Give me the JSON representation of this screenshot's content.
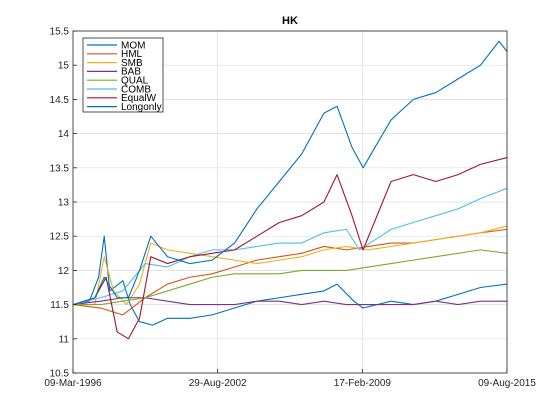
{
  "chart_data": {
    "type": "line",
    "title": "HK",
    "xlabel": "",
    "ylabel": "",
    "x_ticks": [
      "09-Mar-1996",
      "29-Aug-2002",
      "17-Feb-2009",
      "09-Aug-2015"
    ],
    "x_range": [
      "1996-03-09",
      "2015-08-09"
    ],
    "ylim": [
      10.5,
      15.5
    ],
    "y_ticks": [
      10.5,
      11,
      11.5,
      12,
      12.5,
      13,
      13.5,
      14,
      14.5,
      15,
      15.5
    ],
    "grid": true,
    "legend_position": "top-left",
    "series": [
      {
        "name": "MOM",
        "color": "#0072bd",
        "points": [
          [
            "1996-03-09",
            11.5
          ],
          [
            "1996-12-01",
            11.55
          ],
          [
            "1997-05-01",
            11.9
          ],
          [
            "1997-08-01",
            12.5
          ],
          [
            "1997-11-01",
            11.7
          ],
          [
            "1998-06-01",
            11.85
          ],
          [
            "1998-10-01",
            11.5
          ],
          [
            "1999-03-01",
            11.25
          ],
          [
            "1999-10-01",
            11.2
          ],
          [
            "2000-06-01",
            11.3
          ],
          [
            "2001-06-01",
            11.3
          ],
          [
            "2002-06-01",
            11.35
          ],
          [
            "2003-06-01",
            11.45
          ],
          [
            "2004-06-01",
            11.55
          ],
          [
            "2005-06-01",
            11.6
          ],
          [
            "2006-06-01",
            11.65
          ],
          [
            "2007-06-01",
            11.7
          ],
          [
            "2008-01-01",
            11.8
          ],
          [
            "2008-10-01",
            11.55
          ],
          [
            "2009-03-01",
            11.45
          ],
          [
            "2010-06-01",
            11.55
          ],
          [
            "2011-06-01",
            11.5
          ],
          [
            "2012-06-01",
            11.55
          ],
          [
            "2013-06-01",
            11.65
          ],
          [
            "2014-06-01",
            11.75
          ],
          [
            "2015-08-09",
            11.8
          ]
        ]
      },
      {
        "name": "HML",
        "color": "#d95319",
        "points": [
          [
            "1996-03-09",
            11.5
          ],
          [
            "1997-06-01",
            11.45
          ],
          [
            "1998-06-01",
            11.35
          ],
          [
            "1999-06-01",
            11.6
          ],
          [
            "2000-06-01",
            11.8
          ],
          [
            "2001-06-01",
            11.9
          ],
          [
            "2002-06-01",
            11.95
          ],
          [
            "2003-06-01",
            12.05
          ],
          [
            "2004-06-01",
            12.15
          ],
          [
            "2005-06-01",
            12.2
          ],
          [
            "2006-06-01",
            12.25
          ],
          [
            "2007-06-01",
            12.35
          ],
          [
            "2008-06-01",
            12.3
          ],
          [
            "2009-06-01",
            12.35
          ],
          [
            "2010-06-01",
            12.4
          ],
          [
            "2011-06-01",
            12.4
          ],
          [
            "2012-06-01",
            12.45
          ],
          [
            "2013-06-01",
            12.5
          ],
          [
            "2014-06-01",
            12.55
          ],
          [
            "2015-08-09",
            12.6
          ]
        ]
      },
      {
        "name": "SMB",
        "color": "#edb120",
        "points": [
          [
            "1996-03-09",
            11.5
          ],
          [
            "1997-03-01",
            11.5
          ],
          [
            "1997-08-01",
            12.2
          ],
          [
            "1998-01-01",
            11.7
          ],
          [
            "1998-08-01",
            11.5
          ],
          [
            "1999-03-01",
            11.8
          ],
          [
            "1999-09-01",
            12.4
          ],
          [
            "2000-06-01",
            12.3
          ],
          [
            "2001-06-01",
            12.25
          ],
          [
            "2002-06-01",
            12.2
          ],
          [
            "2003-06-01",
            12.15
          ],
          [
            "2004-06-01",
            12.1
          ],
          [
            "2005-06-01",
            12.15
          ],
          [
            "2006-06-01",
            12.2
          ],
          [
            "2007-06-01",
            12.3
          ],
          [
            "2008-06-01",
            12.35
          ],
          [
            "2009-06-01",
            12.3
          ],
          [
            "2010-06-01",
            12.35
          ],
          [
            "2011-06-01",
            12.4
          ],
          [
            "2012-06-01",
            12.45
          ],
          [
            "2013-06-01",
            12.5
          ],
          [
            "2014-06-01",
            12.55
          ],
          [
            "2015-08-09",
            12.65
          ]
        ]
      },
      {
        "name": "BAB",
        "color": "#7e2f8e",
        "points": [
          [
            "1996-03-09",
            11.5
          ],
          [
            "1997-06-01",
            11.55
          ],
          [
            "1998-06-01",
            11.6
          ],
          [
            "1999-06-01",
            11.6
          ],
          [
            "2000-06-01",
            11.55
          ],
          [
            "2001-06-01",
            11.5
          ],
          [
            "2002-06-01",
            11.5
          ],
          [
            "2003-06-01",
            11.5
          ],
          [
            "2004-06-01",
            11.55
          ],
          [
            "2005-06-01",
            11.55
          ],
          [
            "2006-06-01",
            11.5
          ],
          [
            "2007-06-01",
            11.55
          ],
          [
            "2008-06-01",
            11.5
          ],
          [
            "2009-06-01",
            11.5
          ],
          [
            "2010-06-01",
            11.5
          ],
          [
            "2011-06-01",
            11.5
          ],
          [
            "2012-06-01",
            11.55
          ],
          [
            "2013-06-01",
            11.5
          ],
          [
            "2014-06-01",
            11.55
          ],
          [
            "2015-08-09",
            11.55
          ]
        ]
      },
      {
        "name": "QUAL",
        "color": "#77ac30",
        "points": [
          [
            "1996-03-09",
            11.5
          ],
          [
            "1997-06-01",
            11.5
          ],
          [
            "1998-06-01",
            11.55
          ],
          [
            "1999-06-01",
            11.6
          ],
          [
            "2000-06-01",
            11.7
          ],
          [
            "2001-06-01",
            11.8
          ],
          [
            "2002-06-01",
            11.9
          ],
          [
            "2003-06-01",
            11.95
          ],
          [
            "2004-06-01",
            11.95
          ],
          [
            "2005-06-01",
            11.95
          ],
          [
            "2006-06-01",
            12.0
          ],
          [
            "2007-06-01",
            12.0
          ],
          [
            "2008-06-01",
            12.0
          ],
          [
            "2009-06-01",
            12.05
          ],
          [
            "2010-06-01",
            12.1
          ],
          [
            "2011-06-01",
            12.15
          ],
          [
            "2012-06-01",
            12.2
          ],
          [
            "2013-06-01",
            12.25
          ],
          [
            "2014-06-01",
            12.3
          ],
          [
            "2015-08-09",
            12.25
          ]
        ]
      },
      {
        "name": "COMB",
        "color": "#4dbeee",
        "points": [
          [
            "1996-03-09",
            11.5
          ],
          [
            "1997-06-01",
            11.6
          ],
          [
            "1998-06-01",
            11.7
          ],
          [
            "1999-06-01",
            12.1
          ],
          [
            "2000-06-01",
            12.05
          ],
          [
            "2001-06-01",
            12.2
          ],
          [
            "2002-06-01",
            12.3
          ],
          [
            "2003-06-01",
            12.3
          ],
          [
            "2004-06-01",
            12.35
          ],
          [
            "2005-06-01",
            12.4
          ],
          [
            "2006-06-01",
            12.4
          ],
          [
            "2007-06-01",
            12.55
          ],
          [
            "2008-06-01",
            12.6
          ],
          [
            "2009-01-01",
            12.3
          ],
          [
            "2010-06-01",
            12.6
          ],
          [
            "2011-06-01",
            12.7
          ],
          [
            "2012-06-01",
            12.8
          ],
          [
            "2013-06-01",
            12.9
          ],
          [
            "2014-06-01",
            13.05
          ],
          [
            "2015-08-09",
            13.2
          ]
        ]
      },
      {
        "name": "EqualW",
        "color": "#a2142f",
        "points": [
          [
            "1996-03-09",
            11.5
          ],
          [
            "1997-03-01",
            11.6
          ],
          [
            "1997-09-01",
            11.9
          ],
          [
            "1998-03-01",
            11.1
          ],
          [
            "1998-09-01",
            11.0
          ],
          [
            "1999-03-01",
            11.3
          ],
          [
            "1999-09-01",
            12.2
          ],
          [
            "2000-06-01",
            12.1
          ],
          [
            "2001-06-01",
            12.2
          ],
          [
            "2002-06-01",
            12.25
          ],
          [
            "2003-06-01",
            12.3
          ],
          [
            "2004-06-01",
            12.5
          ],
          [
            "2005-06-01",
            12.7
          ],
          [
            "2006-06-01",
            12.8
          ],
          [
            "2007-06-01",
            13.0
          ],
          [
            "2008-01-01",
            13.4
          ],
          [
            "2008-09-01",
            12.8
          ],
          [
            "2009-03-01",
            12.3
          ],
          [
            "2010-06-01",
            13.3
          ],
          [
            "2011-06-01",
            13.4
          ],
          [
            "2012-06-01",
            13.3
          ],
          [
            "2013-06-01",
            13.4
          ],
          [
            "2014-06-01",
            13.55
          ],
          [
            "2015-08-09",
            13.65
          ]
        ]
      },
      {
        "name": "Longonly",
        "color": "#0072bd",
        "points": [
          [
            "1996-03-09",
            11.5
          ],
          [
            "1997-03-01",
            11.6
          ],
          [
            "1997-08-01",
            11.9
          ],
          [
            "1998-03-01",
            11.6
          ],
          [
            "1998-09-01",
            11.6
          ],
          [
            "1999-03-01",
            12.0
          ],
          [
            "1999-09-01",
            12.5
          ],
          [
            "2000-06-01",
            12.2
          ],
          [
            "2001-06-01",
            12.1
          ],
          [
            "2002-06-01",
            12.15
          ],
          [
            "2003-06-01",
            12.4
          ],
          [
            "2004-06-01",
            12.9
          ],
          [
            "2005-06-01",
            13.3
          ],
          [
            "2006-06-01",
            13.7
          ],
          [
            "2007-06-01",
            14.3
          ],
          [
            "2008-01-01",
            14.4
          ],
          [
            "2008-09-01",
            13.8
          ],
          [
            "2009-03-01",
            13.5
          ],
          [
            "2010-06-01",
            14.2
          ],
          [
            "2011-06-01",
            14.5
          ],
          [
            "2012-06-01",
            14.6
          ],
          [
            "2013-06-01",
            14.8
          ],
          [
            "2014-06-01",
            15.0
          ],
          [
            "2015-04-01",
            15.35
          ],
          [
            "2015-08-09",
            15.2
          ]
        ]
      }
    ]
  }
}
